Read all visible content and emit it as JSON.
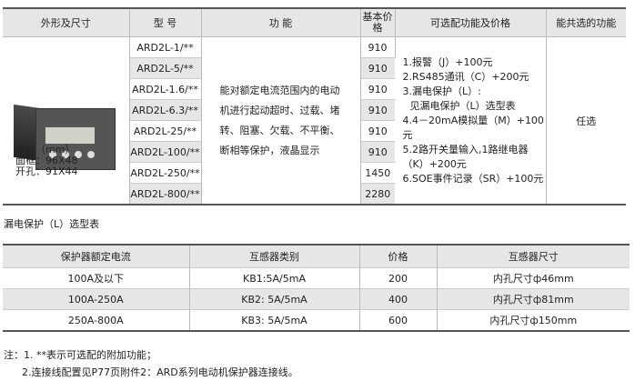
{
  "table1": {
    "headers": [
      "外形及尺寸",
      "型 号",
      "功 能",
      "基本价格",
      "可选配功能及价格",
      "能共选的功能"
    ],
    "models": [
      "ARD2L-1/**",
      "ARD2L-5/**",
      "ARD2L-1.6/**",
      "ARD2L-6.3/**",
      "ARD2L-25/**",
      "ARD2L-100/**",
      "ARD2L-250/**",
      "ARD2L-800/**"
    ],
    "prices": [
      "910",
      "910",
      "910",
      "910",
      "910",
      "910",
      "1450",
      "2280"
    ],
    "function_lines": [
      "能对额定电流范围内的电动",
      "机进行起动超时、过载、堵",
      "转、阻塞、欠载、不平衡、",
      "断相等保护，液晶显示"
    ],
    "options": [
      "1.报警（J）+100元",
      "2.RS485通讯（C）+200元",
      "3.漏电保护（L）:",
      "见漏电保护（L）选型表",
      "4.4－20mA模拟量（M）+100元",
      "5.2路开关量输入,1路继电器",
      "（K）+200元",
      "6.SOE事件记录（SR）+100元"
    ],
    "combinable": "任选",
    "dims": [
      "单位（mm）",
      "面框：96X48",
      "开孔：91X44"
    ]
  },
  "table2": {
    "title": "漏电保护（L）选型表",
    "headers": [
      "保护器额定电流",
      "互感器类别",
      "价格",
      "互感器尺寸"
    ],
    "rows": [
      [
        "100A及以下",
        "KB1:5A/5mA",
        "200",
        "内孔尺寸ф46mm"
      ],
      [
        "100A-250A",
        "KB2: 5A/5mA",
        "400",
        "内孔尺寸ф81mm"
      ],
      [
        "250A-800A",
        "KB3: 5A/5mA",
        "600",
        "内孔尺寸ф150mm"
      ]
    ]
  },
  "notes": [
    "注：1. **表示可选配的附加功能；",
    "2.连接线配置见P77页附件2：ARD系列电动机保护器连接线。"
  ]
}
